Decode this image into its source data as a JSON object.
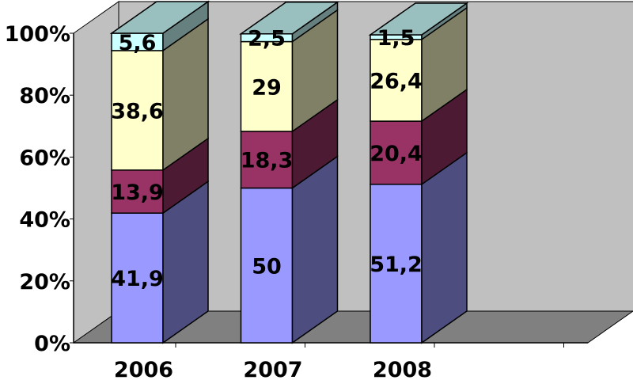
{
  "chart_data": {
    "type": "bar",
    "stacked": "percent",
    "three_d": true,
    "categories": [
      "2006",
      "2007",
      "2008"
    ],
    "series": [
      {
        "values": [
          41.9,
          50,
          51.2
        ],
        "labels": [
          "41,9",
          "50",
          "51,2"
        ],
        "color": "#9999ff"
      },
      {
        "values": [
          13.9,
          18.3,
          20.4
        ],
        "labels": [
          "13,9",
          "18,3",
          "20,4"
        ],
        "color": "#993366"
      },
      {
        "values": [
          38.6,
          29,
          26.4
        ],
        "labels": [
          "38,6",
          "29",
          "26,4"
        ],
        "color": "#ffffcc"
      },
      {
        "values": [
          5.6,
          2.5,
          1.5
        ],
        "labels": [
          "5,6",
          "2,5",
          "1,5"
        ],
        "color": "#ccffff"
      }
    ],
    "yticks": [
      "0%",
      "20%",
      "40%",
      "60%",
      "80%",
      "100%"
    ],
    "ylim": [
      0,
      100
    ],
    "grid": false,
    "legend": "none",
    "wall_color": "#c0c0c0",
    "floor_color": "#808080"
  }
}
